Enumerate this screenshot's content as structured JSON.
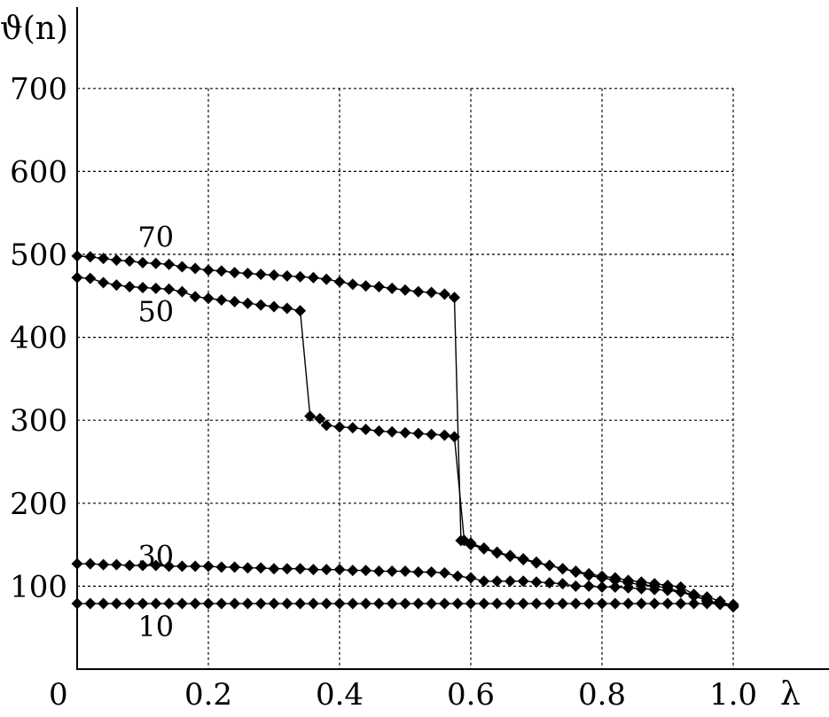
{
  "chart_data": {
    "type": "line",
    "title": "",
    "xlabel": "λ",
    "ylabel": "ϑ(n)",
    "xlim": [
      0,
      1.2
    ],
    "ylim": [
      0,
      700
    ],
    "grid": true,
    "x_ticks": [
      0.2,
      0.4,
      0.6,
      0.8,
      1.0
    ],
    "x_tick_labels": [
      "0.2",
      "0.4",
      "0.6",
      "0.8",
      "1.0"
    ],
    "y_ticks": [
      100,
      200,
      300,
      400,
      500,
      600,
      700
    ],
    "y_tick_labels": [
      "100",
      "200",
      "300",
      "400",
      "500",
      "600",
      "700"
    ],
    "origin_label": "0",
    "series": [
      {
        "name": "70",
        "label_at": [
          0.12,
          520
        ],
        "points": [
          [
            0.0,
            498
          ],
          [
            0.02,
            497
          ],
          [
            0.04,
            495
          ],
          [
            0.06,
            493
          ],
          [
            0.08,
            492
          ],
          [
            0.1,
            490
          ],
          [
            0.12,
            489
          ],
          [
            0.14,
            488
          ],
          [
            0.16,
            485
          ],
          [
            0.18,
            483
          ],
          [
            0.2,
            481
          ],
          [
            0.22,
            480
          ],
          [
            0.24,
            478
          ],
          [
            0.26,
            477
          ],
          [
            0.28,
            476
          ],
          [
            0.3,
            475
          ],
          [
            0.32,
            474
          ],
          [
            0.34,
            473
          ],
          [
            0.36,
            472
          ],
          [
            0.38,
            470
          ],
          [
            0.4,
            467
          ],
          [
            0.42,
            464
          ],
          [
            0.44,
            462
          ],
          [
            0.46,
            461
          ],
          [
            0.48,
            459
          ],
          [
            0.5,
            457
          ],
          [
            0.52,
            455
          ],
          [
            0.54,
            454
          ],
          [
            0.56,
            452
          ],
          [
            0.575,
            448
          ],
          [
            0.585,
            155
          ],
          [
            0.6,
            150
          ],
          [
            0.62,
            145
          ],
          [
            0.64,
            140
          ],
          [
            0.66,
            136
          ],
          [
            0.68,
            132
          ],
          [
            0.7,
            128
          ],
          [
            0.72,
            125
          ],
          [
            0.74,
            121
          ],
          [
            0.76,
            118
          ],
          [
            0.78,
            115
          ],
          [
            0.8,
            112
          ],
          [
            0.82,
            110
          ],
          [
            0.84,
            107
          ],
          [
            0.86,
            105
          ],
          [
            0.88,
            103
          ],
          [
            0.9,
            101
          ],
          [
            0.92,
            99
          ],
          [
            0.94,
            90
          ],
          [
            0.96,
            82
          ],
          [
            0.98,
            78
          ],
          [
            1.0,
            75
          ]
        ]
      },
      {
        "name": "50",
        "label_at": [
          0.12,
          430
        ],
        "points": [
          [
            0.0,
            472
          ],
          [
            0.02,
            471
          ],
          [
            0.04,
            466
          ],
          [
            0.06,
            463
          ],
          [
            0.08,
            461
          ],
          [
            0.1,
            460
          ],
          [
            0.12,
            459
          ],
          [
            0.14,
            458
          ],
          [
            0.16,
            455
          ],
          [
            0.18,
            449
          ],
          [
            0.2,
            447
          ],
          [
            0.22,
            445
          ],
          [
            0.24,
            443
          ],
          [
            0.26,
            441
          ],
          [
            0.28,
            439
          ],
          [
            0.3,
            437
          ],
          [
            0.32,
            435
          ],
          [
            0.34,
            432
          ],
          [
            0.355,
            305
          ],
          [
            0.37,
            302
          ],
          [
            0.38,
            294
          ],
          [
            0.4,
            292
          ],
          [
            0.42,
            291
          ],
          [
            0.44,
            289
          ],
          [
            0.46,
            287
          ],
          [
            0.48,
            286
          ],
          [
            0.5,
            285
          ],
          [
            0.52,
            284
          ],
          [
            0.54,
            283
          ],
          [
            0.56,
            282
          ],
          [
            0.575,
            280
          ],
          [
            0.59,
            155
          ],
          [
            0.6,
            152
          ],
          [
            0.62,
            146
          ],
          [
            0.64,
            141
          ],
          [
            0.66,
            137
          ],
          [
            0.68,
            133
          ],
          [
            0.7,
            129
          ],
          [
            0.72,
            125
          ],
          [
            0.74,
            121
          ],
          [
            0.76,
            117
          ],
          [
            0.78,
            113
          ],
          [
            0.8,
            110
          ],
          [
            0.82,
            107
          ],
          [
            0.84,
            104
          ],
          [
            0.86,
            102
          ],
          [
            0.88,
            100
          ],
          [
            0.9,
            98
          ],
          [
            0.92,
            93
          ],
          [
            0.94,
            88
          ],
          [
            0.96,
            83
          ],
          [
            0.98,
            79
          ],
          [
            1.0,
            76
          ]
        ]
      },
      {
        "name": "30",
        "label_at": [
          0.12,
          135
        ],
        "points": [
          [
            0.0,
            127
          ],
          [
            0.02,
            127
          ],
          [
            0.04,
            126
          ],
          [
            0.06,
            126
          ],
          [
            0.08,
            125
          ],
          [
            0.1,
            125
          ],
          [
            0.12,
            125
          ],
          [
            0.14,
            124
          ],
          [
            0.16,
            124
          ],
          [
            0.18,
            124
          ],
          [
            0.2,
            124
          ],
          [
            0.22,
            123
          ],
          [
            0.24,
            123
          ],
          [
            0.26,
            122
          ],
          [
            0.28,
            122
          ],
          [
            0.3,
            121
          ],
          [
            0.32,
            121
          ],
          [
            0.34,
            121
          ],
          [
            0.36,
            120
          ],
          [
            0.38,
            120
          ],
          [
            0.4,
            120
          ],
          [
            0.42,
            119
          ],
          [
            0.44,
            119
          ],
          [
            0.46,
            118
          ],
          [
            0.48,
            118
          ],
          [
            0.5,
            118
          ],
          [
            0.52,
            117
          ],
          [
            0.54,
            117
          ],
          [
            0.56,
            116
          ],
          [
            0.58,
            112
          ],
          [
            0.6,
            110
          ],
          [
            0.62,
            106
          ],
          [
            0.64,
            106
          ],
          [
            0.66,
            106
          ],
          [
            0.68,
            106
          ],
          [
            0.7,
            105
          ],
          [
            0.72,
            104
          ],
          [
            0.74,
            103
          ],
          [
            0.76,
            100
          ],
          [
            0.78,
            100
          ],
          [
            0.8,
            99
          ],
          [
            0.82,
            99
          ],
          [
            0.84,
            98
          ],
          [
            0.86,
            97
          ],
          [
            0.88,
            96
          ],
          [
            0.9,
            95
          ],
          [
            0.92,
            93
          ],
          [
            0.94,
            90
          ],
          [
            0.96,
            87
          ],
          [
            0.98,
            82
          ],
          [
            1.0,
            76
          ]
        ]
      },
      {
        "name": "10",
        "label_at": [
          0.12,
          50
        ],
        "points": [
          [
            0.0,
            79
          ],
          [
            0.02,
            79
          ],
          [
            0.04,
            79
          ],
          [
            0.06,
            79
          ],
          [
            0.08,
            79
          ],
          [
            0.1,
            79
          ],
          [
            0.12,
            79
          ],
          [
            0.14,
            79
          ],
          [
            0.16,
            79
          ],
          [
            0.18,
            79
          ],
          [
            0.2,
            79
          ],
          [
            0.22,
            79
          ],
          [
            0.24,
            79
          ],
          [
            0.26,
            79
          ],
          [
            0.28,
            79
          ],
          [
            0.3,
            79
          ],
          [
            0.32,
            79
          ],
          [
            0.34,
            79
          ],
          [
            0.36,
            79
          ],
          [
            0.38,
            79
          ],
          [
            0.4,
            79
          ],
          [
            0.42,
            79
          ],
          [
            0.44,
            79
          ],
          [
            0.46,
            79
          ],
          [
            0.48,
            79
          ],
          [
            0.5,
            79
          ],
          [
            0.52,
            79
          ],
          [
            0.54,
            79
          ],
          [
            0.56,
            79
          ],
          [
            0.58,
            79
          ],
          [
            0.6,
            79
          ],
          [
            0.62,
            79
          ],
          [
            0.64,
            79
          ],
          [
            0.66,
            79
          ],
          [
            0.68,
            79
          ],
          [
            0.7,
            79
          ],
          [
            0.72,
            79
          ],
          [
            0.74,
            79
          ],
          [
            0.76,
            79
          ],
          [
            0.78,
            79
          ],
          [
            0.8,
            79
          ],
          [
            0.82,
            79
          ],
          [
            0.84,
            79
          ],
          [
            0.86,
            79
          ],
          [
            0.88,
            79
          ],
          [
            0.9,
            79
          ],
          [
            0.92,
            79
          ],
          [
            0.94,
            79
          ],
          [
            0.96,
            79
          ],
          [
            0.98,
            79
          ],
          [
            1.0,
            78
          ]
        ]
      }
    ]
  }
}
